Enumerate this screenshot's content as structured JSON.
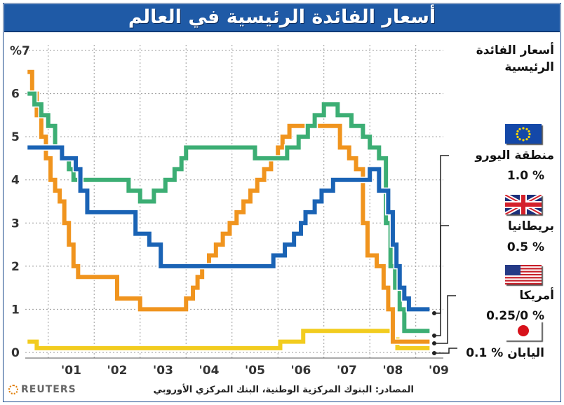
{
  "title": "أسعار الفائدة الرئيسية في العالم",
  "legend_heading_line1": "أسعار الفائدة",
  "legend_heading_line2": "الرئيسية",
  "source": "المصادر: البنوك المركزية الوطنية، البنك المركزي الأوروبي",
  "brand": "REUTERS",
  "legend": [
    {
      "key": "eurozone",
      "name": "منطقة اليورو",
      "rate": "1.0 %",
      "flag": "eu-flag-icon",
      "color": "#1a63b5"
    },
    {
      "key": "uk",
      "name": "بريطانيا",
      "rate": "0.5 %",
      "flag": "uk-flag-icon",
      "color": "#3cae74"
    },
    {
      "key": "us",
      "name": "أمريكا",
      "rate": "0.25/0 %",
      "flag": "us-flag-icon",
      "color": "#f0941e"
    },
    {
      "key": "japan",
      "name": "اليابان",
      "rate": "0.1 %",
      "flag": "japan-flag-icon",
      "color": "#f2cc1f"
    }
  ],
  "chart_data": {
    "type": "line",
    "step": true,
    "ylim": [
      0,
      7
    ],
    "xlim": [
      2000.5,
      2009.6
    ],
    "y_ticks": [
      "0",
      "1",
      "2",
      "3",
      "4",
      "5",
      "6",
      "%7"
    ],
    "x_ticks": [
      "'01",
      "'02",
      "'03",
      "'04",
      "'05",
      "'06",
      "'07",
      "'08",
      "'09"
    ],
    "grid": true,
    "series": [
      {
        "name": "منطقة اليورو",
        "color": "#1a63b5",
        "points": [
          [
            2000.55,
            4.75
          ],
          [
            2001.3,
            4.5
          ],
          [
            2001.6,
            4.25
          ],
          [
            2001.7,
            3.75
          ],
          [
            2001.85,
            3.25
          ],
          [
            2002.9,
            2.75
          ],
          [
            2003.2,
            2.5
          ],
          [
            2003.45,
            2.0
          ],
          [
            2005.9,
            2.25
          ],
          [
            2006.15,
            2.5
          ],
          [
            2006.35,
            2.75
          ],
          [
            2006.5,
            3.0
          ],
          [
            2006.6,
            3.25
          ],
          [
            2006.8,
            3.5
          ],
          [
            2006.95,
            3.75
          ],
          [
            2007.2,
            4.0
          ],
          [
            2008.0,
            4.25
          ],
          [
            2008.2,
            3.75
          ],
          [
            2008.4,
            3.25
          ],
          [
            2008.5,
            2.5
          ],
          [
            2008.58,
            2.0
          ],
          [
            2008.65,
            1.5
          ],
          [
            2008.75,
            1.25
          ],
          [
            2008.85,
            1.0
          ],
          [
            2009.3,
            1.0
          ]
        ]
      },
      {
        "name": "بريطانيا",
        "color": "#3cae74",
        "points": [
          [
            2000.55,
            6.0
          ],
          [
            2000.7,
            5.75
          ],
          [
            2000.85,
            5.5
          ],
          [
            2001.0,
            5.25
          ],
          [
            2001.15,
            4.75
          ],
          [
            2001.3,
            4.5
          ],
          [
            2001.45,
            4.25
          ],
          [
            2001.55,
            4.0
          ],
          [
            2002.5,
            4.0
          ],
          [
            2002.75,
            3.75
          ],
          [
            2003.0,
            3.5
          ],
          [
            2003.3,
            3.75
          ],
          [
            2003.55,
            4.0
          ],
          [
            2003.75,
            4.25
          ],
          [
            2003.9,
            4.5
          ],
          [
            2004.0,
            4.75
          ],
          [
            2005.2,
            4.75
          ],
          [
            2005.5,
            4.5
          ],
          [
            2006.0,
            4.5
          ],
          [
            2006.2,
            4.75
          ],
          [
            2006.45,
            5.0
          ],
          [
            2006.65,
            5.25
          ],
          [
            2006.8,
            5.5
          ],
          [
            2007.0,
            5.75
          ],
          [
            2007.3,
            5.5
          ],
          [
            2007.6,
            5.25
          ],
          [
            2007.85,
            5.0
          ],
          [
            2008.0,
            4.75
          ],
          [
            2008.2,
            4.5
          ],
          [
            2008.35,
            3.0
          ],
          [
            2008.45,
            2.0
          ],
          [
            2008.55,
            1.5
          ],
          [
            2008.65,
            1.0
          ],
          [
            2008.75,
            0.5
          ],
          [
            2009.3,
            0.5
          ]
        ]
      },
      {
        "name": "أمريكا",
        "color": "#f0941e",
        "points": [
          [
            2000.55,
            6.5
          ],
          [
            2000.65,
            6.0
          ],
          [
            2000.75,
            5.5
          ],
          [
            2000.85,
            5.0
          ],
          [
            2000.95,
            4.5
          ],
          [
            2001.05,
            4.0
          ],
          [
            2001.15,
            3.75
          ],
          [
            2001.25,
            3.5
          ],
          [
            2001.35,
            3.0
          ],
          [
            2001.45,
            2.5
          ],
          [
            2001.55,
            2.0
          ],
          [
            2001.65,
            1.75
          ],
          [
            2002.4,
            1.75
          ],
          [
            2002.5,
            1.25
          ],
          [
            2002.8,
            1.25
          ],
          [
            2003.0,
            1.0
          ],
          [
            2003.8,
            1.0
          ],
          [
            2004.0,
            1.25
          ],
          [
            2004.15,
            1.5
          ],
          [
            2004.25,
            1.75
          ],
          [
            2004.35,
            2.0
          ],
          [
            2004.5,
            2.25
          ],
          [
            2004.65,
            2.5
          ],
          [
            2004.8,
            2.75
          ],
          [
            2004.95,
            3.0
          ],
          [
            2005.1,
            3.25
          ],
          [
            2005.25,
            3.5
          ],
          [
            2005.4,
            3.75
          ],
          [
            2005.55,
            4.0
          ],
          [
            2005.7,
            4.25
          ],
          [
            2005.85,
            4.5
          ],
          [
            2006.0,
            4.75
          ],
          [
            2006.1,
            5.0
          ],
          [
            2006.25,
            5.25
          ],
          [
            2006.5,
            5.25
          ],
          [
            2006.4,
            5.25
          ],
          [
            2007.2,
            5.25
          ],
          [
            2007.35,
            4.75
          ],
          [
            2007.55,
            4.5
          ],
          [
            2007.7,
            4.25
          ],
          [
            2007.85,
            3.0
          ],
          [
            2007.95,
            2.25
          ],
          [
            2008.15,
            2.0
          ],
          [
            2008.3,
            1.5
          ],
          [
            2008.4,
            1.0
          ],
          [
            2008.5,
            0.25
          ],
          [
            2009.3,
            0.25
          ]
        ]
      },
      {
        "name": "اليابان",
        "color": "#f2cc1f",
        "points": [
          [
            2000.55,
            0.25
          ],
          [
            2000.75,
            0.1
          ],
          [
            2006.05,
            0.25
          ],
          [
            2006.55,
            0.5
          ],
          [
            2008.4,
            0.5
          ],
          [
            2008.5,
            0.3
          ],
          [
            2008.6,
            0.1
          ],
          [
            2009.3,
            0.1
          ]
        ]
      }
    ]
  }
}
